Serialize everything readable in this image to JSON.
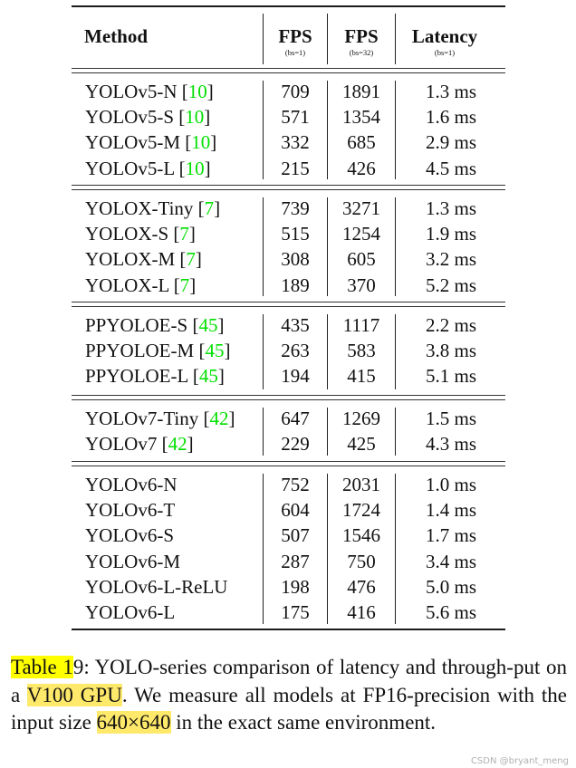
{
  "table": {
    "headers": {
      "method": "Method",
      "fps1": "FPS",
      "fps1_sub": "(bs=1)",
      "fps32": "FPS",
      "fps32_sub": "(bs=32)",
      "latency": "Latency",
      "latency_sub": "(bs=1)"
    },
    "groups": [
      {
        "rows": [
          {
            "name": "YOLOv5-N",
            "ref": "10",
            "fps1": "709",
            "fps32": "1891",
            "latency": "1.3 ms"
          },
          {
            "name": "YOLOv5-S",
            "ref": "10",
            "fps1": "571",
            "fps32": "1354",
            "latency": "1.6 ms"
          },
          {
            "name": "YOLOv5-M",
            "ref": "10",
            "fps1": "332",
            "fps32": "685",
            "latency": "2.9 ms"
          },
          {
            "name": "YOLOv5-L",
            "ref": "10",
            "fps1": "215",
            "fps32": "426",
            "latency": "4.5 ms"
          }
        ]
      },
      {
        "rows": [
          {
            "name": "YOLOX-Tiny",
            "ref": "7",
            "fps1": "739",
            "fps32": "3271",
            "latency": "1.3 ms"
          },
          {
            "name": "YOLOX-S",
            "ref": "7",
            "fps1": "515",
            "fps32": "1254",
            "latency": "1.9 ms"
          },
          {
            "name": "YOLOX-M",
            "ref": "7",
            "fps1": "308",
            "fps32": "605",
            "latency": "3.2 ms"
          },
          {
            "name": "YOLOX-L",
            "ref": "7",
            "fps1": "189",
            "fps32": "370",
            "latency": "5.2 ms"
          }
        ]
      },
      {
        "rows": [
          {
            "name": "PPYOLOE-S",
            "ref": "45",
            "fps1": "435",
            "fps32": "1117",
            "latency": "2.2 ms"
          },
          {
            "name": "PPYOLOE-M",
            "ref": "45",
            "fps1": "263",
            "fps32": "583",
            "latency": "3.8 ms"
          },
          {
            "name": "PPYOLOE-L",
            "ref": "45",
            "fps1": "194",
            "fps32": "415",
            "latency": "5.1 ms"
          }
        ]
      },
      {
        "rows": [
          {
            "name": "YOLOv7-Tiny",
            "ref": "42",
            "fps1": "647",
            "fps32": "1269",
            "latency": "1.5 ms"
          },
          {
            "name": "YOLOv7",
            "ref": "42",
            "fps1": "229",
            "fps32": "425",
            "latency": "4.3 ms"
          }
        ]
      },
      {
        "rows": [
          {
            "name": "YOLOv6-N",
            "ref": "",
            "fps1": "752",
            "fps32": "2031",
            "latency": "1.0 ms"
          },
          {
            "name": "YOLOv6-T",
            "ref": "",
            "fps1": "604",
            "fps32": "1724",
            "latency": "1.4 ms"
          },
          {
            "name": "YOLOv6-S",
            "ref": "",
            "fps1": "507",
            "fps32": "1546",
            "latency": "1.7 ms"
          },
          {
            "name": "YOLOv6-M",
            "ref": "",
            "fps1": "287",
            "fps32": "750",
            "latency": "3.4 ms"
          },
          {
            "name": "YOLOv6-L-ReLU",
            "ref": "",
            "fps1": "198",
            "fps32": "476",
            "latency": "5.0 ms"
          },
          {
            "name": "YOLOv6-L",
            "ref": "",
            "fps1": "175",
            "fps32": "416",
            "latency": "5.6 ms"
          }
        ]
      }
    ]
  },
  "caption": {
    "part1_highlight": "Table 1",
    "part2": "9: YOLO-series comparison of latency and through-put on a ",
    "part3_highlight": "V100 GPU",
    "part4": ". We measure all models at FP16-precision with the input size ",
    "part5_highlight": "640×640",
    "part6": " in the exact same environment."
  },
  "colors": {
    "citation": "#00e000",
    "highlight_strong": "#ffff00",
    "highlight_soft": "#ffe96b"
  },
  "watermark": "CSDN @bryant_meng"
}
